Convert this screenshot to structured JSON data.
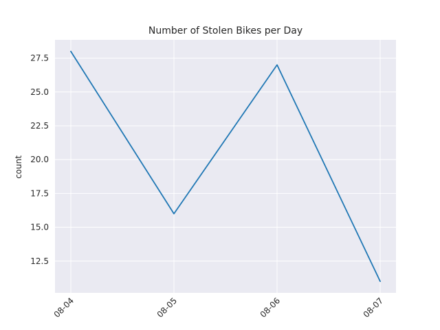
{
  "chart_data": {
    "type": "line",
    "title": "Number of Stolen Bikes per Day",
    "xlabel": "",
    "ylabel": "count",
    "categories": [
      "08-04",
      "08-05",
      "08-06",
      "08-07"
    ],
    "series": [
      {
        "name": "count",
        "values": [
          28,
          16,
          27,
          11
        ]
      }
    ],
    "ylim": [
      10.15,
      28.85
    ],
    "yticks": [
      12.5,
      15.0,
      17.5,
      20.0,
      22.5,
      25.0,
      27.5
    ],
    "ytick_labels": [
      "12.5",
      "15.0",
      "17.5",
      "20.0",
      "22.5",
      "25.0",
      "27.5"
    ],
    "grid": true,
    "legend": "none",
    "colors": {
      "background": "#eaeaf2",
      "grid": "#ffffff",
      "line": "#1f77b4",
      "text": "#262626"
    }
  }
}
